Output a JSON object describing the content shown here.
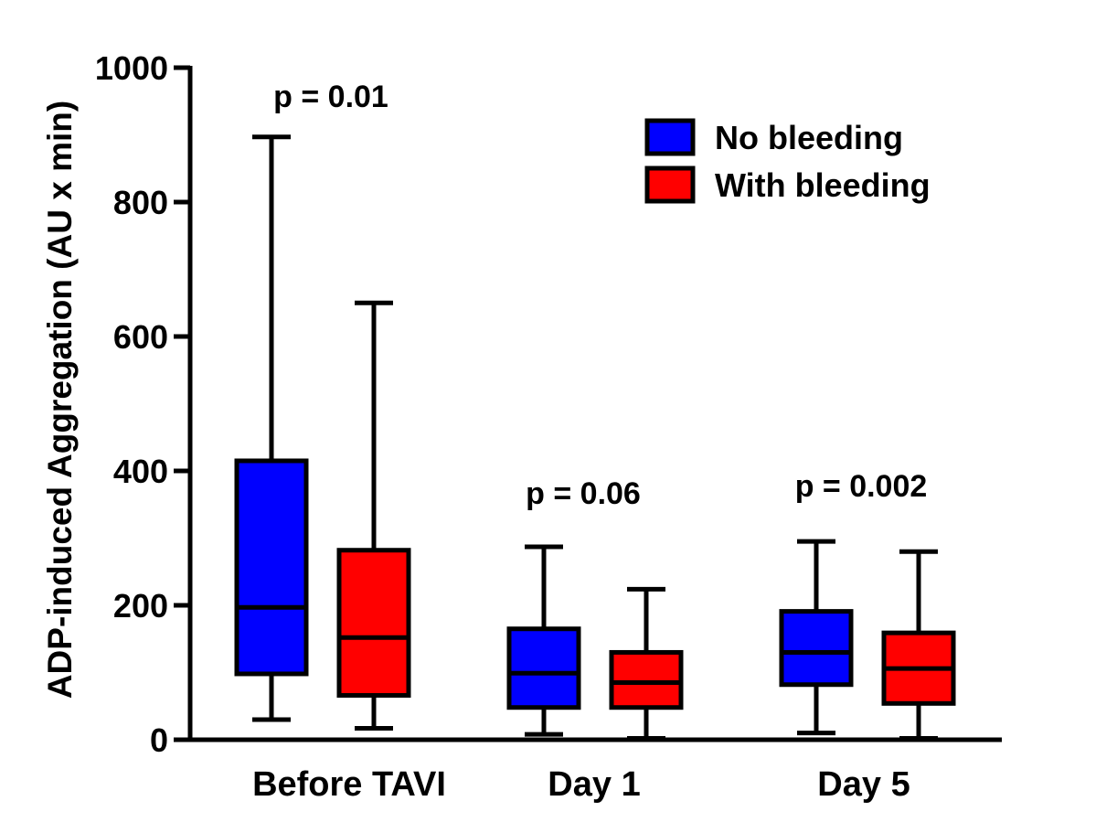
{
  "chart_data": {
    "type": "box",
    "title": "",
    "xlabel": "",
    "ylabel": "ADP-induced Aggregation (AU x min)",
    "ylim": [
      0,
      1000
    ],
    "yticks": [
      "0",
      "200",
      "400",
      "600",
      "800",
      "1000"
    ],
    "categories": [
      "Before TAVI",
      "Day 1",
      "Day 5"
    ],
    "p_values": [
      "p = 0.01",
      "p = 0.06",
      "p = 0.002"
    ],
    "legend_position": "top-right",
    "grid": false,
    "series": [
      {
        "name": "No bleeding",
        "color": "#0000FF",
        "boxes": [
          {
            "min": 30,
            "q1": 98,
            "median": 197,
            "q3": 415,
            "max": 897
          },
          {
            "min": 8,
            "q1": 48,
            "median": 99,
            "q3": 165,
            "max": 287
          },
          {
            "min": 10,
            "q1": 82,
            "median": 130,
            "q3": 191,
            "max": 295
          }
        ]
      },
      {
        "name": "With bleeding",
        "color": "#FF0000",
        "boxes": [
          {
            "min": 17,
            "q1": 66,
            "median": 152,
            "q3": 282,
            "max": 650
          },
          {
            "min": 2,
            "q1": 48,
            "median": 85,
            "q3": 130,
            "max": 224
          },
          {
            "min": 2,
            "q1": 54,
            "median": 106,
            "q3": 159,
            "max": 280
          }
        ]
      }
    ]
  }
}
